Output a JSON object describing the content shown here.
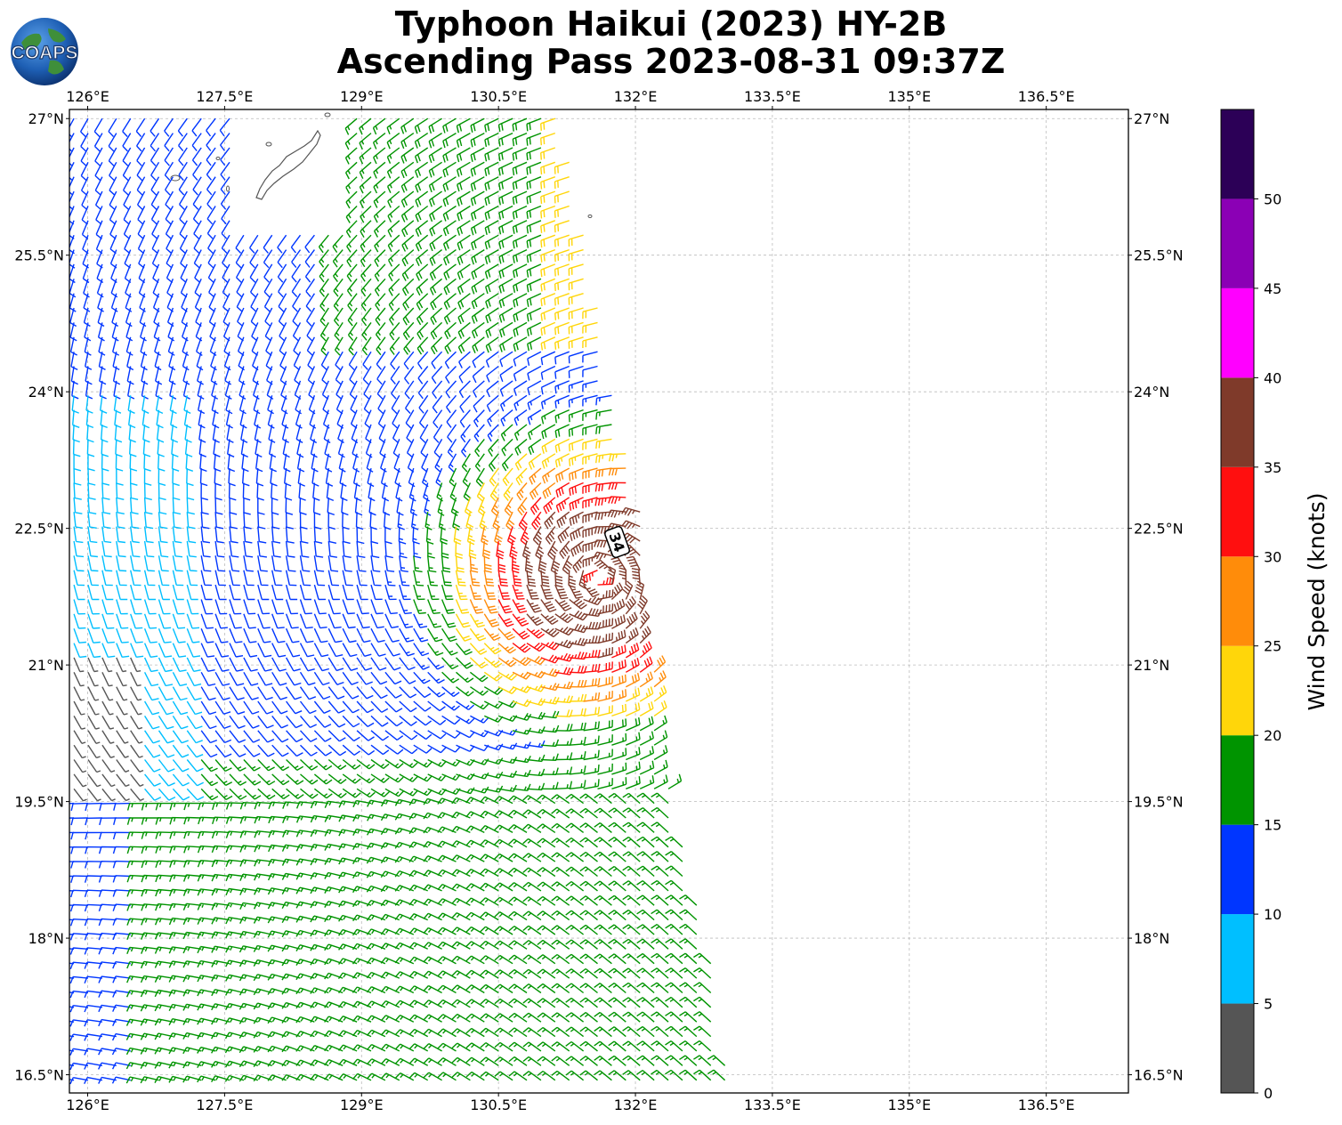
{
  "title_line1": "Typhoon Haikui (2023) HY-2B",
  "title_line2": "Ascending Pass 2023-08-31 09:37Z",
  "logo": {
    "text": "COAPS",
    "icon": "globe-logo"
  },
  "storm_marker": {
    "label": "34",
    "lon": 131.8,
    "lat": 22.35
  },
  "map": {
    "lon_range": [
      125.8,
      137.4
    ],
    "lat_range": [
      16.3,
      27.1
    ],
    "gridlines": true,
    "lon_ticks": [
      {
        "value": 126.0,
        "label": "126°E"
      },
      {
        "value": 127.5,
        "label": "127.5°E"
      },
      {
        "value": 129.0,
        "label": "129°E"
      },
      {
        "value": 130.5,
        "label": "130.5°E"
      },
      {
        "value": 132.0,
        "label": "132°E"
      },
      {
        "value": 133.5,
        "label": "133.5°E"
      },
      {
        "value": 135.0,
        "label": "135°E"
      },
      {
        "value": 136.5,
        "label": "136.5°E"
      }
    ],
    "lat_ticks": [
      {
        "value": 27.0,
        "label": "27°N"
      },
      {
        "value": 25.5,
        "label": "25.5°N"
      },
      {
        "value": 24.0,
        "label": "24°N"
      },
      {
        "value": 22.5,
        "label": "22.5°N"
      },
      {
        "value": 21.0,
        "label": "21°N"
      },
      {
        "value": 19.5,
        "label": "19.5°N"
      },
      {
        "value": 18.0,
        "label": "18°N"
      },
      {
        "value": 16.5,
        "label": "16.5°N"
      }
    ]
  },
  "chart_data": {
    "type": "wind-barb-map",
    "center": {
      "lon": 131.6,
      "lat": 21.95
    },
    "swath_edge_lon_at_lat": [
      [
        27.0,
        131.2
      ],
      [
        25.5,
        131.5
      ],
      [
        24.0,
        131.75
      ],
      [
        22.5,
        132.1
      ],
      [
        21.0,
        132.2
      ],
      [
        19.5,
        132.4
      ],
      [
        18.0,
        132.8
      ],
      [
        16.5,
        133.0
      ]
    ],
    "colorbar": {
      "label": "Wind Speed (knots)",
      "bins": [
        {
          "min": 0,
          "max": 5,
          "color": "#555555"
        },
        {
          "min": 5,
          "max": 10,
          "color": "#00bfff"
        },
        {
          "min": 10,
          "max": 15,
          "color": "#0036ff"
        },
        {
          "min": 15,
          "max": 20,
          "color": "#009400"
        },
        {
          "min": 20,
          "max": 25,
          "color": "#ffd60a"
        },
        {
          "min": 25,
          "max": 30,
          "color": "#ff8c0a"
        },
        {
          "min": 30,
          "max": 35,
          "color": "#ff0f0f"
        },
        {
          "min": 35,
          "max": 40,
          "color": "#7f3a2a"
        },
        {
          "min": 40,
          "max": 45,
          "color": "#ff00ff"
        },
        {
          "min": 45,
          "max": 50,
          "color": "#8b00b5"
        },
        {
          "min": 50,
          "max": 55,
          "color": "#2c0057"
        }
      ],
      "ticks": [
        {
          "value": 0,
          "label": "0"
        },
        {
          "value": 5,
          "label": "5"
        },
        {
          "value": 10,
          "label": "10"
        },
        {
          "value": 15,
          "label": "15"
        },
        {
          "value": 20,
          "label": "20"
        },
        {
          "value": 25,
          "label": "25"
        },
        {
          "value": 30,
          "label": "30"
        },
        {
          "value": 35,
          "label": "35"
        },
        {
          "value": 40,
          "label": "40"
        },
        {
          "value": 45,
          "label": "45"
        },
        {
          "value": 50,
          "label": "50"
        }
      ]
    }
  }
}
